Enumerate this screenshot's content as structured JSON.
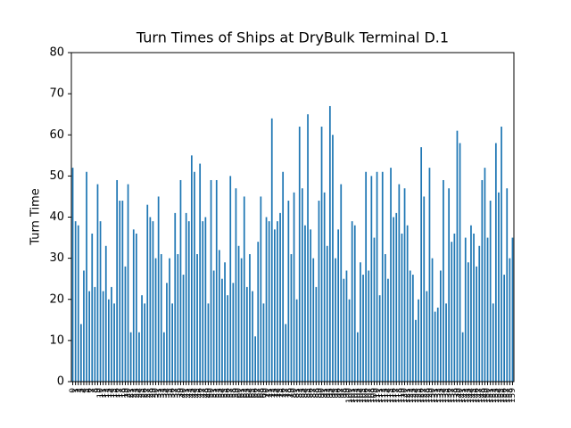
{
  "chart_data": {
    "type": "bar",
    "title": "Turn Times of Ships at DryBulk Terminal D.1",
    "y_label": "Turn Time",
    "categories": [
      0,
      1,
      2,
      3,
      4,
      5,
      6,
      7,
      8,
      9,
      10,
      11,
      12,
      13,
      14,
      15,
      16,
      17,
      18,
      19,
      20,
      21,
      22,
      23,
      24,
      25,
      26,
      27,
      28,
      29,
      30,
      31,
      32,
      33,
      34,
      35,
      36,
      37,
      38,
      39,
      40,
      41,
      42,
      43,
      44,
      45,
      46,
      47,
      48,
      49,
      50,
      51,
      52,
      53,
      54,
      55,
      56,
      57,
      58,
      59,
      60,
      61,
      62,
      63,
      64,
      65,
      66,
      67,
      68,
      69,
      70,
      71,
      72,
      73,
      74,
      75,
      76,
      77,
      78,
      79,
      80,
      81,
      82,
      83,
      84,
      85,
      86,
      87,
      88,
      89,
      90,
      91,
      92,
      93,
      94,
      95,
      96,
      97,
      98,
      99,
      100,
      101,
      102,
      103,
      104,
      105,
      106,
      107,
      108,
      109,
      110,
      111,
      112,
      113,
      114,
      115,
      116,
      117,
      118,
      119,
      120,
      121,
      122,
      123,
      124,
      125,
      126,
      127,
      128,
      129,
      130,
      131,
      132,
      133,
      134,
      135,
      136,
      137,
      138,
      139,
      140,
      141,
      142,
      143,
      144,
      145,
      146,
      147,
      148,
      149,
      150,
      151,
      152,
      153,
      154,
      155,
      156,
      157,
      158,
      159
    ],
    "values": [
      52,
      39,
      38,
      14,
      27,
      51,
      22,
      36,
      23,
      48,
      39,
      22,
      33,
      20,
      23,
      19,
      49,
      44,
      44,
      28,
      48,
      12,
      37,
      36,
      12,
      21,
      19,
      43,
      40,
      39,
      30,
      45,
      31,
      12,
      24,
      30,
      19,
      41,
      31,
      49,
      26,
      41,
      39,
      55,
      51,
      31,
      53,
      39,
      40,
      19,
      49,
      27,
      49,
      32,
      25,
      29,
      21,
      50,
      24,
      47,
      33,
      30,
      45,
      23,
      31,
      22,
      11,
      34,
      45,
      19,
      40,
      39,
      64,
      37,
      39,
      41,
      51,
      14,
      44,
      31,
      46,
      20,
      62,
      47,
      38,
      65,
      37,
      30,
      23,
      44,
      62,
      46,
      33,
      67,
      60,
      30,
      37,
      48,
      25,
      27,
      20,
      39,
      38,
      12,
      29,
      26,
      51,
      27,
      50,
      35,
      51,
      21,
      51,
      31,
      25,
      52,
      40,
      41,
      48,
      36,
      47,
      38,
      27,
      26,
      15,
      20,
      57,
      45,
      22,
      52,
      30,
      17,
      18,
      27,
      49,
      19,
      47,
      34,
      36,
      61,
      58,
      12,
      35,
      29,
      38,
      36,
      28,
      33,
      49,
      52,
      35,
      44,
      19,
      58,
      46,
      62,
      26,
      47,
      30,
      35
    ],
    "color": "#1f77b4",
    "ylim": [
      0,
      80
    ],
    "yticks": [
      0,
      10,
      20,
      30,
      40,
      50,
      60,
      70,
      80
    ]
  }
}
